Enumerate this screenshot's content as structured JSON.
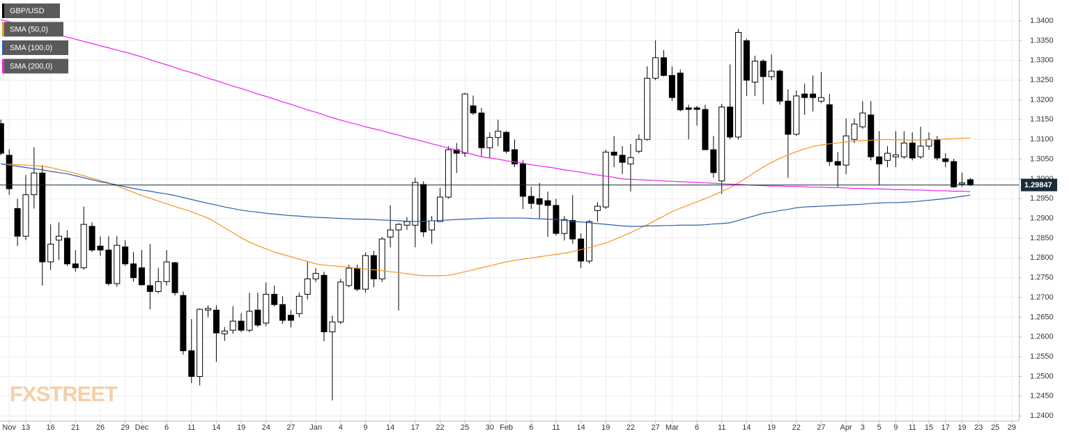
{
  "chart_data": {
    "type": "candlestick",
    "watermark": "FXSTREET",
    "grid": true,
    "categories": [
      null,
      "Nov",
      null,
      "13",
      null,
      null,
      "16",
      null,
      null,
      "21",
      null,
      null,
      "26",
      null,
      null,
      "29",
      null,
      "Dec",
      null,
      null,
      "6",
      null,
      null,
      "11",
      null,
      null,
      "14",
      null,
      null,
      "19",
      null,
      null,
      "24",
      null,
      null,
      "27",
      null,
      null,
      "Jan",
      null,
      null,
      "4",
      null,
      null,
      "9",
      null,
      null,
      "14",
      null,
      null,
      "17",
      null,
      null,
      "22",
      null,
      null,
      "25",
      null,
      null,
      "30",
      null,
      "Feb",
      null,
      null,
      "6",
      null,
      null,
      "11",
      null,
      null,
      "14",
      null,
      null,
      "19",
      null,
      null,
      "22",
      null,
      null,
      "27",
      null,
      "Mar",
      null,
      null,
      "6",
      null,
      null,
      "11",
      null,
      null,
      "14",
      null,
      null,
      "19",
      null,
      null,
      "22",
      null,
      null,
      "27",
      null,
      null,
      "Apr",
      null,
      "3",
      null,
      "5",
      null,
      "9",
      null,
      "11",
      null,
      "15",
      null,
      "17",
      null,
      "19",
      null,
      "23",
      null,
      "25",
      null,
      "29"
    ],
    "series": [
      {
        "name": "GBP/USD",
        "type": "candlestick",
        "color": "#000000",
        "open": [
          1.314,
          1.306,
          1.2925,
          1.2855,
          1.296,
          1.3015,
          1.279,
          1.2845,
          1.285,
          1.2785,
          1.2775,
          1.288,
          1.283,
          1.282,
          1.2735,
          1.2828,
          1.2785,
          1.2775,
          1.273,
          1.2715,
          1.274,
          1.2788,
          1.2705,
          1.2565,
          1.25,
          1.2668,
          1.2668,
          1.2608,
          1.2617,
          1.264,
          1.2617,
          1.2668,
          1.2635,
          1.2708,
          1.2682,
          1.2655,
          1.2659,
          1.2708,
          1.2747,
          1.2756,
          1.2613,
          1.2638,
          1.273,
          1.2774,
          1.2721,
          1.2806,
          1.2747,
          1.2853,
          1.2871,
          1.2883,
          1.2883,
          1.2986,
          1.2871,
          1.2892,
          1.2954,
          1.3074,
          1.3065,
          1.3185,
          1.3167,
          1.3079,
          1.3105,
          1.3118,
          1.3074,
          1.3038,
          1.2956,
          1.295,
          1.2945,
          1.2933,
          1.2862,
          1.2895,
          1.2848,
          1.2792,
          1.292,
          1.2929,
          1.3068,
          1.306,
          1.3038,
          1.307,
          1.31,
          1.3255,
          1.3307,
          1.3262,
          1.3268,
          1.318,
          1.318,
          1.3176,
          1.3074,
          1.2995,
          1.3182,
          1.3106,
          1.335,
          1.3245,
          1.3298,
          1.3259,
          1.3273,
          1.3197,
          1.3113,
          1.3215,
          1.3215,
          1.3197,
          1.3188,
          1.3044,
          1.3035,
          1.31,
          1.3132,
          1.3162,
          1.3056,
          1.3047,
          1.3056,
          1.3056,
          1.3091,
          1.3056,
          1.3083,
          1.31,
          1.3051,
          1.3044,
          1.2987,
          1.2998,
          null,
          null,
          null,
          null,
          null
        ],
        "high": [
          1.315,
          1.3075,
          1.295,
          1.301,
          1.308,
          1.3035,
          1.2885,
          1.289,
          1.287,
          1.282,
          1.293,
          1.289,
          1.2855,
          1.2855,
          1.2855,
          1.2845,
          1.2815,
          1.282,
          1.2835,
          1.2775,
          1.282,
          1.279,
          1.2715,
          1.2645,
          1.2672,
          1.268,
          1.268,
          1.2625,
          1.2678,
          1.266,
          1.2712,
          1.2712,
          1.2738,
          1.273,
          1.2703,
          1.2668,
          1.2712,
          1.2792,
          1.2774,
          1.2765,
          1.2654,
          1.2747,
          1.2783,
          1.2783,
          1.2814,
          1.2818,
          1.2853,
          1.2933,
          1.2888,
          1.2903,
          1.3003,
          1.2994,
          1.2906,
          1.2977,
          1.3083,
          1.3091,
          1.3218,
          1.3211,
          1.318,
          1.3118,
          1.315,
          1.3121,
          1.31,
          1.3047,
          1.298,
          1.299,
          1.2968,
          1.295,
          1.2906,
          1.2959,
          1.2862,
          1.2896,
          1.2941,
          1.3074,
          1.3109,
          1.3083,
          1.3088,
          1.3113,
          1.3285,
          1.3351,
          1.3326,
          1.3285,
          1.3277,
          1.3188,
          1.3185,
          1.3188,
          1.3109,
          1.319,
          1.329,
          1.338,
          1.3355,
          1.3312,
          1.3303,
          1.3315,
          1.3277,
          1.3227,
          1.3224,
          1.3241,
          1.3262,
          1.3271,
          1.3215,
          1.3068,
          1.3153,
          1.3153,
          1.3197,
          1.3197,
          1.3121,
          1.3083,
          1.3121,
          1.3121,
          1.3118,
          1.3132,
          1.3118,
          1.3109,
          1.3065,
          1.3051,
          1.3016,
          1.3003,
          null,
          null,
          null,
          null,
          null
        ],
        "low": [
          1.306,
          1.296,
          1.283,
          1.2845,
          1.2925,
          1.273,
          1.277,
          1.2795,
          1.278,
          1.2765,
          1.277,
          1.2815,
          1.2805,
          1.273,
          1.2727,
          1.278,
          1.274,
          1.273,
          1.267,
          1.271,
          1.273,
          1.2705,
          1.2555,
          1.2483,
          1.2477,
          1.265,
          1.2537,
          1.259,
          1.2608,
          1.2612,
          1.2612,
          1.2625,
          1.2627,
          1.2677,
          1.2633,
          1.2624,
          1.265,
          1.2695,
          1.2739,
          1.2589,
          1.2439,
          1.2633,
          1.2726,
          1.2716,
          1.2712,
          1.2726,
          1.2739,
          1.2827,
          1.2667,
          1.2871,
          1.2827,
          1.2853,
          1.2836,
          1.2892,
          1.295,
          1.3015,
          1.3056,
          1.3162,
          1.3056,
          1.3054,
          1.3083,
          1.3065,
          1.303,
          1.2924,
          1.2924,
          1.29,
          1.2853,
          1.2857,
          1.2844,
          1.2836,
          1.2774,
          1.2786,
          1.2892,
          1.2924,
          1.303,
          1.3012,
          1.2968,
          1.3065,
          1.3097,
          1.325,
          1.3259,
          1.3197,
          1.3171,
          1.31,
          1.3135,
          1.3074,
          1.3003,
          1.2962,
          1.31,
          1.31,
          1.321,
          1.321,
          1.3189,
          1.325,
          1.3188,
          1.3003,
          1.3109,
          1.3162,
          1.3171,
          1.3192,
          1.3033,
          1.298,
          1.3012,
          1.3091,
          1.3127,
          1.3047,
          1.2985,
          1.303,
          1.303,
          1.3051,
          1.3047,
          1.3051,
          1.3074,
          1.3047,
          1.303,
          1.2977,
          1.298,
          1.2982,
          null,
          null,
          null,
          null,
          null
        ],
        "close": [
          1.3065,
          1.2975,
          1.2855,
          1.296,
          1.3015,
          1.279,
          1.2835,
          1.2855,
          1.2785,
          1.2775,
          1.2885,
          1.282,
          1.282,
          1.2735,
          1.2832,
          1.2785,
          1.275,
          1.2732,
          1.2715,
          1.274,
          1.279,
          1.2712,
          1.2565,
          1.25,
          1.267,
          1.2672,
          1.261,
          1.2615,
          1.264,
          1.2617,
          1.2665,
          1.263,
          1.2708,
          1.2682,
          1.2642,
          1.2642,
          1.2703,
          1.2747,
          1.2761,
          1.2613,
          1.2638,
          1.2739,
          1.2774,
          1.2721,
          1.2806,
          1.2747,
          1.2848,
          1.2871,
          1.2885,
          1.2892,
          1.2991,
          1.2866,
          1.2894,
          1.2954,
          1.3074,
          1.3065,
          1.3215,
          1.3167,
          1.3079,
          1.3105,
          1.3121,
          1.307,
          1.3038,
          1.2956,
          1.2938,
          1.2936,
          1.2933,
          1.2862,
          1.2897,
          1.2848,
          1.2792,
          1.2892,
          1.2931,
          1.3068,
          1.306,
          1.3042,
          1.3054,
          1.31,
          1.3255,
          1.3307,
          1.3262,
          1.3206,
          1.3175,
          1.3176,
          1.3176,
          1.3074,
          1.3016,
          1.3182,
          1.3106,
          1.3371,
          1.325,
          1.3298,
          1.3259,
          1.3273,
          1.3197,
          1.3113,
          1.321,
          1.3206,
          1.3206,
          1.3206,
          1.3044,
          1.3035,
          1.3109,
          1.3139,
          1.3167,
          1.3056,
          1.3038,
          1.3065,
          1.3061,
          1.3091,
          1.3053,
          1.3083,
          1.31,
          1.3053,
          1.3044,
          1.298,
          1.299,
          1.29847,
          null,
          null,
          null,
          null,
          null
        ]
      },
      {
        "name": "SMA (50,0)",
        "type": "line",
        "color": "#f7931e",
        "values": [
          1.3038,
          1.3037,
          1.3036,
          1.3035,
          1.3034,
          1.3032,
          1.3029,
          1.3024,
          1.3019,
          1.3014,
          1.3008,
          1.3002,
          1.2996,
          1.299,
          1.2982,
          1.2974,
          1.2966,
          1.2958,
          1.2951,
          1.2944,
          1.2937,
          1.293,
          1.2924,
          1.2917,
          1.2909,
          1.2901,
          1.2889,
          1.2876,
          1.2864,
          1.2851,
          1.284,
          1.2831,
          1.2823,
          1.2815,
          1.2809,
          1.2803,
          1.2797,
          1.2791,
          1.2785,
          1.2782,
          1.278,
          1.2778,
          1.2776,
          1.2774,
          1.2772,
          1.277,
          1.2768,
          1.2765,
          1.2763,
          1.276,
          1.2757,
          1.2755,
          1.2755,
          1.2755,
          1.2756,
          1.276,
          1.2765,
          1.277,
          1.2775,
          1.278,
          1.2785,
          1.279,
          1.2794,
          1.2797,
          1.28,
          1.2803,
          1.2806,
          1.2809,
          1.2812,
          1.2816,
          1.2821,
          1.2826,
          1.2832,
          1.2838,
          1.2846,
          1.2855,
          1.2864,
          1.2874,
          1.2884,
          1.2895,
          1.2906,
          1.2917,
          1.2926,
          1.2934,
          1.2942,
          1.295,
          1.2959,
          1.2968,
          1.2978,
          1.299,
          1.3003,
          1.3017,
          1.303,
          1.3042,
          1.3052,
          1.3061,
          1.3069,
          1.3076,
          1.3082,
          1.3086,
          1.3089,
          1.3091,
          1.3094,
          1.3096,
          1.3097,
          1.3098,
          1.3099,
          1.31,
          1.3099,
          1.3099,
          1.3098,
          1.3099,
          1.3099,
          1.31,
          1.3101,
          1.3102,
          1.3103,
          1.3104,
          null,
          null,
          null,
          null,
          null
        ]
      },
      {
        "name": "SMA (100,0)",
        "type": "line",
        "color": "#2a5db0",
        "values": [
          1.3038,
          1.3035,
          1.3032,
          1.3029,
          1.3026,
          1.3023,
          1.3019,
          1.3016,
          1.3013,
          1.3008,
          1.3003,
          1.2998,
          1.2993,
          1.2989,
          1.2985,
          1.298,
          1.2976,
          1.2972,
          1.2969,
          1.2965,
          1.2962,
          1.2958,
          1.2953,
          1.2948,
          1.2943,
          1.2938,
          1.2934,
          1.2929,
          1.2925,
          1.2921,
          1.2918,
          1.2916,
          1.2913,
          1.2911,
          1.2909,
          1.2907,
          1.2906,
          1.2904,
          1.2903,
          1.2902,
          1.2901,
          1.29,
          1.2899,
          1.2898,
          1.2898,
          1.2897,
          1.2896,
          1.2895,
          1.2894,
          1.2893,
          1.2892,
          1.2893,
          1.2894,
          1.2895,
          1.2896,
          1.2897,
          1.2898,
          1.2899,
          1.29,
          1.2901,
          1.2901,
          1.2901,
          1.2901,
          1.2901,
          1.29,
          1.2899,
          1.2898,
          1.2897,
          1.2895,
          1.2893,
          1.2891,
          1.2889,
          1.2887,
          1.2885,
          1.2883,
          1.2881,
          1.288,
          1.288,
          1.2881,
          1.2881,
          1.2882,
          1.2882,
          1.2883,
          1.2883,
          1.2883,
          1.2884,
          1.2886,
          1.2887,
          1.2889,
          1.2895,
          1.2901,
          1.2907,
          1.2913,
          1.2916,
          1.292,
          1.2923,
          1.2927,
          1.2929,
          1.293,
          1.2931,
          1.2932,
          1.2933,
          1.2934,
          1.2935,
          1.2936,
          1.2938,
          1.2939,
          1.294,
          1.294,
          1.2941,
          1.2942,
          1.2944,
          1.2946,
          1.2948,
          1.295,
          1.2953,
          1.2956,
          1.2959,
          null,
          null,
          null,
          null,
          null
        ]
      },
      {
        "name": "SMA (200,0)",
        "type": "line",
        "color": "#ee1fee",
        "values": [
          1.3403,
          1.3398,
          1.3392,
          1.3387,
          1.3381,
          1.3376,
          1.337,
          1.3365,
          1.3359,
          1.3354,
          1.3348,
          1.3343,
          1.3337,
          1.3332,
          1.3326,
          1.3321,
          1.3315,
          1.3309,
          1.3302,
          1.3295,
          1.3289,
          1.3282,
          1.3275,
          1.3269,
          1.3262,
          1.3255,
          1.3249,
          1.3242,
          1.3235,
          1.3229,
          1.3222,
          1.3215,
          1.3209,
          1.3202,
          1.3195,
          1.3189,
          1.3182,
          1.3175,
          1.3169,
          1.3162,
          1.3155,
          1.3149,
          1.3143,
          1.3138,
          1.3132,
          1.3127,
          1.3122,
          1.3116,
          1.3111,
          1.3105,
          1.31,
          1.3095,
          1.3089,
          1.3084,
          1.3078,
          1.3073,
          1.3067,
          1.3062,
          1.3056,
          1.3053,
          1.305,
          1.3046,
          1.3043,
          1.304,
          1.3036,
          1.3033,
          1.303,
          1.3027,
          1.3023,
          1.302,
          1.3017,
          1.3013,
          1.301,
          1.3007,
          1.3004,
          1.3,
          1.2999,
          1.2998,
          1.2997,
          1.2996,
          1.2995,
          1.2994,
          1.2993,
          1.2992,
          1.2991,
          1.299,
          1.2989,
          1.2988,
          1.2987,
          1.2986,
          1.2985,
          1.2984,
          1.2983,
          1.2982,
          1.2982,
          1.2981,
          1.2981,
          1.298,
          1.2979,
          1.2979,
          1.2978,
          1.2978,
          1.2977,
          1.2976,
          1.2976,
          1.2975,
          1.2975,
          1.2974,
          1.2973,
          1.2973,
          1.2972,
          1.2972,
          1.2971,
          1.297,
          1.297,
          1.2969,
          1.2969,
          1.2968,
          null,
          null,
          null,
          null,
          null
        ]
      }
    ],
    "last_price": 1.29847,
    "ylim": [
      1.2388,
      1.3453
    ],
    "yticks": [
      {
        "value": 1.24,
        "label": "1.2400"
      },
      {
        "value": 1.245,
        "label": "1.2450"
      },
      {
        "value": 1.25,
        "label": "1.2500"
      },
      {
        "value": 1.255,
        "label": "1.2550"
      },
      {
        "value": 1.26,
        "label": "1.2600"
      },
      {
        "value": 1.265,
        "label": "1.2650"
      },
      {
        "value": 1.27,
        "label": "1.2700"
      },
      {
        "value": 1.275,
        "label": "1.2750"
      },
      {
        "value": 1.28,
        "label": "1.2800"
      },
      {
        "value": 1.285,
        "label": "1.2850"
      },
      {
        "value": 1.29,
        "label": "1.2900"
      },
      {
        "value": 1.295,
        "label": "1.2950"
      },
      {
        "value": 1.3,
        "label": "1.3000"
      },
      {
        "value": 1.305,
        "label": "1.3050"
      },
      {
        "value": 1.31,
        "label": "1.3100"
      },
      {
        "value": 1.315,
        "label": "1.3150"
      },
      {
        "value": 1.32,
        "label": "1.3200"
      },
      {
        "value": 1.325,
        "label": "1.3250"
      },
      {
        "value": 1.33,
        "label": "1.3300"
      },
      {
        "value": 1.335,
        "label": "1.3350"
      },
      {
        "value": 1.34,
        "label": "1.3400"
      }
    ]
  }
}
